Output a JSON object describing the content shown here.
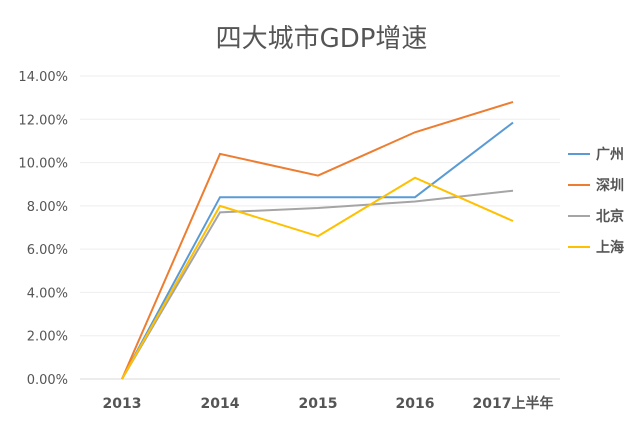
{
  "chart_data": {
    "type": "line",
    "title": "四大城市GDP增速",
    "categories": [
      "2013",
      "2014",
      "2015",
      "2016",
      "2017上半年"
    ],
    "ylim": [
      0,
      14
    ],
    "yticks": [
      "0.00%",
      "2.00%",
      "4.00%",
      "6.00%",
      "8.00%",
      "10.00%",
      "12.00%",
      "14.00%"
    ],
    "grid": true,
    "legend_position": "right",
    "series": [
      {
        "name": "广州",
        "color": "#5b9bd5",
        "values": [
          0,
          8.4,
          8.4,
          8.4,
          11.85
        ]
      },
      {
        "name": "深圳",
        "color": "#ed7d31",
        "values": [
          0,
          10.4,
          9.4,
          11.4,
          12.8
        ]
      },
      {
        "name": "北京",
        "color": "#a5a5a5",
        "values": [
          0,
          7.7,
          7.9,
          8.2,
          8.7
        ]
      },
      {
        "name": "上海",
        "color": "#ffc000",
        "values": [
          0,
          8.0,
          6.6,
          9.3,
          7.3
        ]
      }
    ]
  }
}
